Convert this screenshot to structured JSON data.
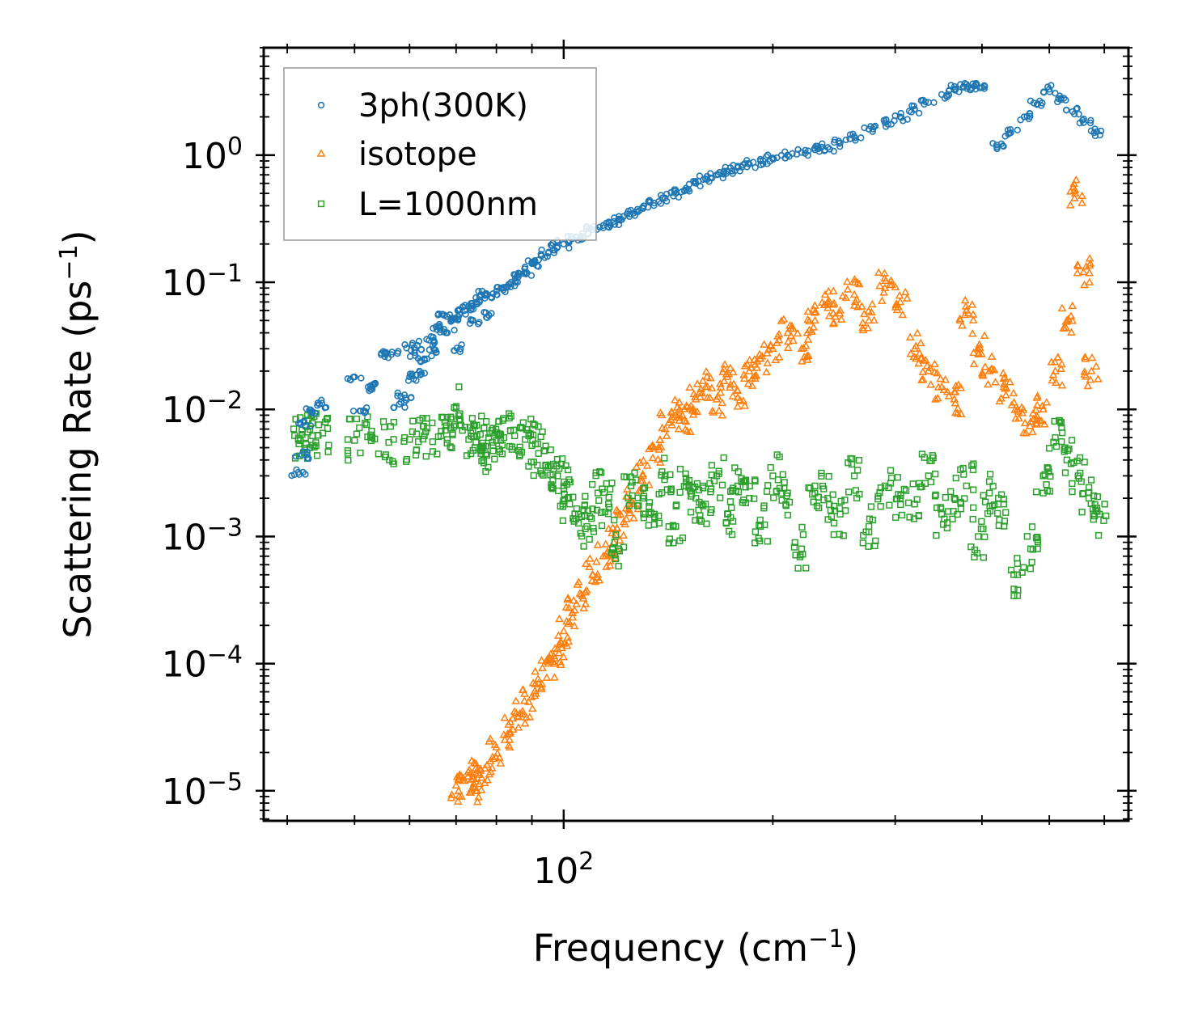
{
  "chart_data": {
    "type": "scatter",
    "xscale": "log",
    "yscale": "log",
    "xlabel": "Frequency (cm⁻¹)",
    "ylabel": "Scattering Rate (ps⁻¹)",
    "xlabel_parts": {
      "pre": "Frequency (cm",
      "sup": "−1",
      "post": ")"
    },
    "ylabel_parts": {
      "pre": "Scattering Rate (ps",
      "sup": "−1",
      "post": ")"
    },
    "xlim": [
      37,
      650
    ],
    "ylim": [
      5.8e-06,
      7
    ],
    "x_major_ticks": [
      {
        "value": 100,
        "base": "10",
        "exp": "2"
      }
    ],
    "y_major_ticks": [
      {
        "value": 1,
        "base": "10",
        "exp": "0"
      },
      {
        "value": 0.1,
        "base": "10",
        "exp": "−1"
      },
      {
        "value": 0.01,
        "base": "10",
        "exp": "−2"
      },
      {
        "value": 0.001,
        "base": "10",
        "exp": "−3"
      },
      {
        "value": 0.0001,
        "base": "10",
        "exp": "−4"
      },
      {
        "value": 1e-05,
        "base": "10",
        "exp": "−5"
      }
    ],
    "legend_position": "top-left",
    "series": [
      {
        "name": "3ph(300K)",
        "marker": "circle",
        "color": "#1f77b4",
        "points": [
          [
            41.5,
            0.0032
          ],
          [
            42,
            0.0044
          ],
          [
            42.3,
            0.0079
          ],
          [
            43.5,
            0.0096
          ],
          [
            44.5,
            0.011
          ],
          [
            50,
            0.018
          ],
          [
            51,
            0.0097
          ],
          [
            52.3,
            0.015
          ],
          [
            53,
            0.015
          ],
          [
            55.5,
            0.028
          ],
          [
            56.5,
            0.027
          ],
          [
            58,
            0.011
          ],
          [
            59,
            0.013
          ],
          [
            60,
            0.018
          ],
          [
            60.5,
            0.032
          ],
          [
            61,
            0.028
          ],
          [
            62,
            0.02
          ],
          [
            63,
            0.025
          ],
          [
            64,
            0.035
          ],
          [
            65,
            0.03
          ],
          [
            66,
            0.045
          ],
          [
            67,
            0.056
          ],
          [
            68,
            0.04
          ],
          [
            69,
            0.05
          ],
          [
            70,
            0.052
          ],
          [
            71,
            0.03
          ],
          [
            72,
            0.06
          ],
          [
            73,
            0.065
          ],
          [
            74,
            0.05
          ],
          [
            75,
            0.07
          ],
          [
            76,
            0.08
          ],
          [
            77,
            0.075
          ],
          [
            78,
            0.055
          ],
          [
            80,
            0.085
          ],
          [
            82,
            0.09
          ],
          [
            84,
            0.1
          ],
          [
            86,
            0.11
          ],
          [
            88,
            0.12
          ],
          [
            90,
            0.14
          ],
          [
            92,
            0.15
          ],
          [
            95,
            0.17
          ],
          [
            98,
            0.19
          ],
          [
            100,
            0.2
          ],
          [
            103,
            0.22
          ],
          [
            106,
            0.23
          ],
          [
            110,
            0.26
          ],
          [
            114,
            0.28
          ],
          [
            118,
            0.3
          ],
          [
            122,
            0.33
          ],
          [
            126,
            0.35
          ],
          [
            130,
            0.38
          ],
          [
            135,
            0.42
          ],
          [
            140,
            0.46
          ],
          [
            145,
            0.5
          ],
          [
            150,
            0.55
          ],
          [
            155,
            0.6
          ],
          [
            160,
            0.65
          ],
          [
            166,
            0.7
          ],
          [
            172,
            0.75
          ],
          [
            178,
            0.8
          ],
          [
            185,
            0.85
          ],
          [
            192,
            0.9
          ],
          [
            200,
            0.95
          ],
          [
            210,
            1.0
          ],
          [
            220,
            1.05
          ],
          [
            230,
            1.1
          ],
          [
            240,
            1.15
          ],
          [
            250,
            1.25
          ],
          [
            262,
            1.4
          ],
          [
            275,
            1.6
          ],
          [
            290,
            1.8
          ],
          [
            305,
            2.0
          ],
          [
            320,
            2.3
          ],
          [
            335,
            2.6
          ],
          [
            350,
            3.0
          ],
          [
            365,
            3.3
          ],
          [
            380,
            3.6
          ],
          [
            390,
            3.5
          ],
          [
            400,
            3.4
          ],
          [
            420,
            1.2
          ],
          [
            440,
            1.5
          ],
          [
            460,
            2.0
          ],
          [
            480,
            2.5
          ],
          [
            500,
            3.3
          ],
          [
            520,
            2.8
          ],
          [
            540,
            2.2
          ],
          [
            560,
            1.8
          ],
          [
            580,
            1.5
          ]
        ]
      },
      {
        "name": "isotope",
        "marker": "triangle",
        "color": "#ff7f0e",
        "points": [
          [
            70,
            1.1e-05
          ],
          [
            72,
            1.2e-05
          ],
          [
            74,
            1.3e-05
          ],
          [
            75,
            1e-05
          ],
          [
            77,
            1.5e-05
          ],
          [
            80,
            2.2e-05
          ],
          [
            83,
            2.8e-05
          ],
          [
            86,
            3.8e-05
          ],
          [
            89,
            5e-05
          ],
          [
            92,
            7e-05
          ],
          [
            95,
            0.0001
          ],
          [
            98,
            0.00013
          ],
          [
            100,
            0.00018
          ],
          [
            103,
            0.00025
          ],
          [
            106,
            0.00035
          ],
          [
            110,
            0.0005
          ],
          [
            114,
            0.0007
          ],
          [
            118,
            0.0009
          ],
          [
            122,
            0.0013
          ],
          [
            126,
            0.0018
          ],
          [
            130,
            0.003
          ],
          [
            135,
            0.005
          ],
          [
            140,
            0.007
          ],
          [
            145,
            0.009
          ],
          [
            150,
            0.008
          ],
          [
            155,
            0.012
          ],
          [
            160,
            0.015
          ],
          [
            166,
            0.012
          ],
          [
            172,
            0.018
          ],
          [
            178,
            0.014
          ],
          [
            185,
            0.02
          ],
          [
            192,
            0.025
          ],
          [
            200,
            0.03
          ],
          [
            210,
            0.04
          ],
          [
            220,
            0.03
          ],
          [
            230,
            0.05
          ],
          [
            240,
            0.07
          ],
          [
            250,
            0.06
          ],
          [
            262,
            0.08
          ],
          [
            275,
            0.05
          ],
          [
            290,
            0.09
          ],
          [
            305,
            0.07
          ],
          [
            320,
            0.03
          ],
          [
            335,
            0.02
          ],
          [
            350,
            0.015
          ],
          [
            365,
            0.012
          ],
          [
            380,
            0.06
          ],
          [
            395,
            0.03
          ],
          [
            410,
            0.02
          ],
          [
            430,
            0.015
          ],
          [
            450,
            0.01
          ],
          [
            470,
            0.008
          ],
          [
            490,
            0.01
          ],
          [
            510,
            0.02
          ],
          [
            530,
            0.05
          ],
          [
            545,
            0.5
          ],
          [
            560,
            0.12
          ],
          [
            575,
            0.02
          ]
        ]
      },
      {
        "name": "L=1000nm",
        "marker": "square",
        "color": "#2ca02c",
        "points": [
          [
            41.5,
            0.0058
          ],
          [
            42.5,
            0.006
          ],
          [
            43.5,
            0.0062
          ],
          [
            45,
            0.0065
          ],
          [
            50,
            0.0057
          ],
          [
            53,
            0.006
          ],
          [
            56,
            0.0055
          ],
          [
            60,
            0.0058
          ],
          [
            63,
            0.0062
          ],
          [
            66,
            0.0061
          ],
          [
            68,
            0.0058
          ],
          [
            70,
            0.0102
          ],
          [
            73,
            0.0058
          ],
          [
            75,
            0.0062
          ],
          [
            76,
            0.0045
          ],
          [
            78,
            0.006
          ],
          [
            80,
            0.0057
          ],
          [
            82,
            0.006
          ],
          [
            85,
            0.0062
          ],
          [
            88,
            0.0058
          ],
          [
            90,
            0.0052
          ],
          [
            92,
            0.0045
          ],
          [
            95,
            0.0035
          ],
          [
            98,
            0.003
          ],
          [
            100,
            0.0025
          ],
          [
            102,
            0.0018
          ],
          [
            105,
            0.0015
          ],
          [
            108,
            0.0012
          ],
          [
            112,
            0.0022
          ],
          [
            116,
            0.0018
          ],
          [
            120,
            0.0008
          ],
          [
            125,
            0.0025
          ],
          [
            130,
            0.002
          ],
          [
            135,
            0.0015
          ],
          [
            140,
            0.003
          ],
          [
            145,
            0.0012
          ],
          [
            150,
            0.0025
          ],
          [
            155,
            0.002
          ],
          [
            160,
            0.0018
          ],
          [
            166,
            0.003
          ],
          [
            172,
            0.0015
          ],
          [
            178,
            0.0025
          ],
          [
            185,
            0.002
          ],
          [
            192,
            0.0012
          ],
          [
            200,
            0.003
          ],
          [
            210,
            0.0022
          ],
          [
            220,
            0.0008
          ],
          [
            230,
            0.0025
          ],
          [
            240,
            0.002
          ],
          [
            250,
            0.0015
          ],
          [
            262,
            0.003
          ],
          [
            275,
            0.0012
          ],
          [
            290,
            0.0025
          ],
          [
            305,
            0.002
          ],
          [
            320,
            0.0018
          ],
          [
            335,
            0.003
          ],
          [
            350,
            0.0015
          ],
          [
            365,
            0.002
          ],
          [
            380,
            0.0025
          ],
          [
            395,
            0.001
          ],
          [
            410,
            0.0022
          ],
          [
            430,
            0.0018
          ],
          [
            450,
            0.0005
          ],
          [
            470,
            0.0008
          ],
          [
            490,
            0.003
          ],
          [
            510,
            0.006
          ],
          [
            530,
            0.004
          ],
          [
            550,
            0.003
          ],
          [
            570,
            0.002
          ],
          [
            590,
            0.0015
          ]
        ]
      }
    ]
  }
}
